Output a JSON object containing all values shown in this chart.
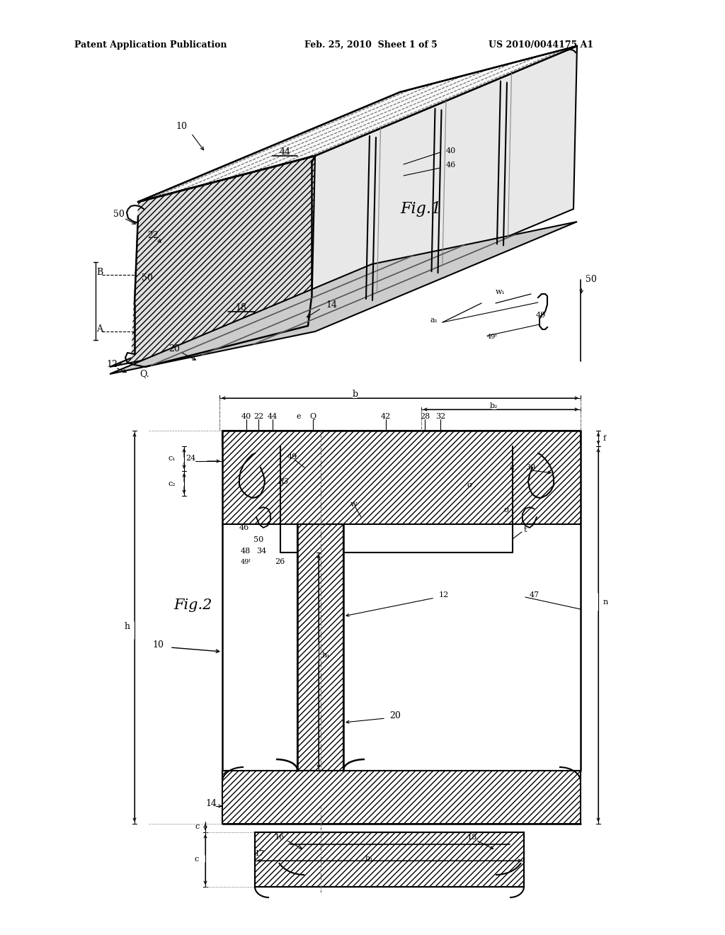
{
  "bg_color": "#ffffff",
  "header_left": "Patent Application Publication",
  "header_mid": "Feb. 25, 2010  Sheet 1 of 5",
  "header_right": "US 2010/0044175 A1",
  "line_color": "#000000",
  "fig1_label": "Fig.1",
  "fig2_label": "Fig.2",
  "hatch": "////",
  "font_size_label": 9,
  "font_size_header": 9,
  "font_size_fig": 14
}
